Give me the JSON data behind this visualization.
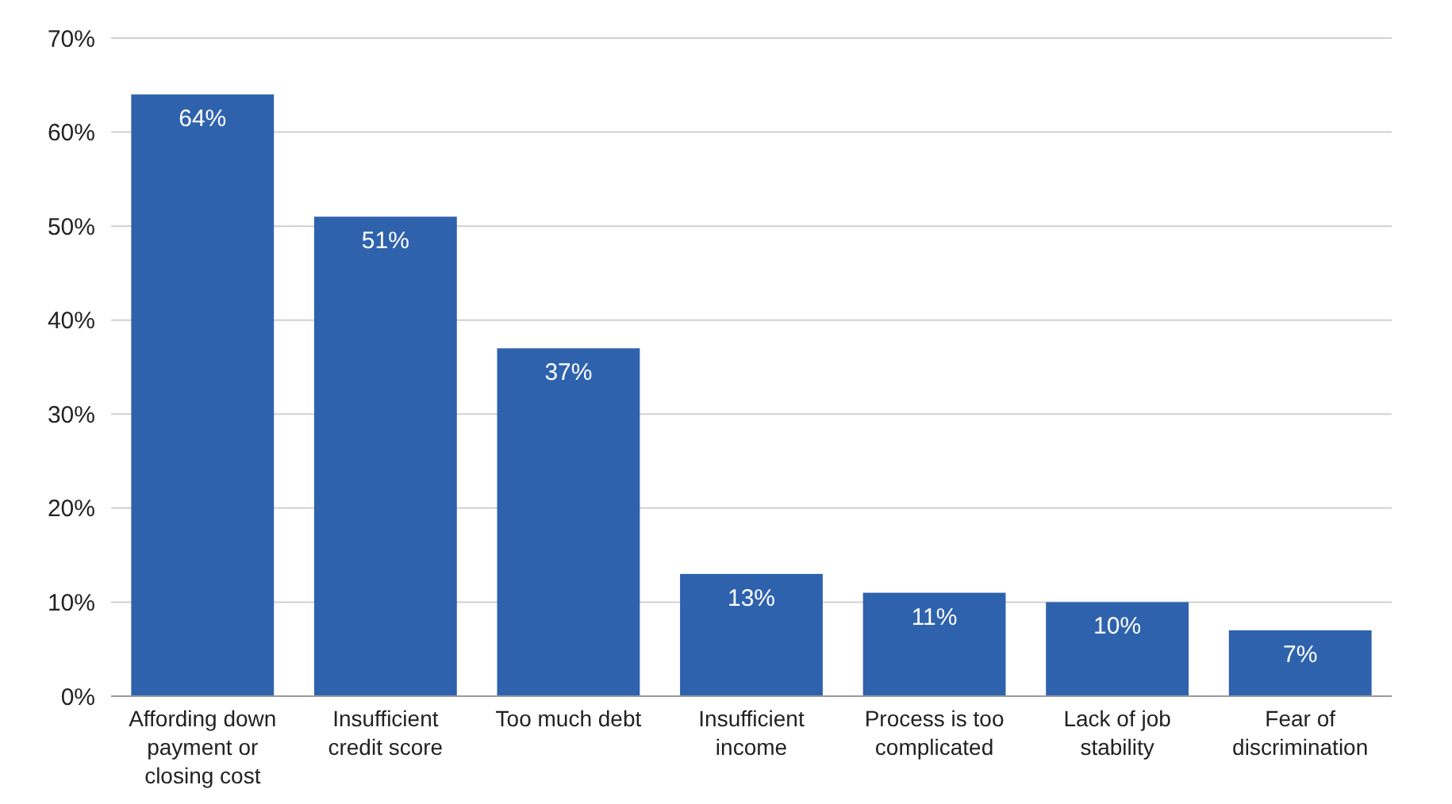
{
  "chart_data": {
    "type": "bar",
    "categories": [
      "Affording down payment or closing cost",
      "Insufficient credit score",
      "Too much debt",
      "Insufficient income",
      "Process is too complicated",
      "Lack of job stability",
      "Fear of discrimination"
    ],
    "values": [
      64,
      51,
      37,
      13,
      11,
      10,
      7
    ],
    "value_labels": [
      "64%",
      "51%",
      "37%",
      "13%",
      "11%",
      "10%",
      "7%"
    ],
    "color": "#2e62ad",
    "ylim": [
      0,
      70
    ],
    "yticks": [
      {
        "value": 0,
        "label": "0%"
      },
      {
        "value": 10,
        "label": "10%"
      },
      {
        "value": 20,
        "label": "20%"
      },
      {
        "value": 30,
        "label": "30%"
      },
      {
        "value": 40,
        "label": "40%"
      },
      {
        "value": 50,
        "label": "50%"
      },
      {
        "value": 60,
        "label": "60%"
      },
      {
        "value": 70,
        "label": "70%"
      }
    ],
    "grid": "y"
  }
}
